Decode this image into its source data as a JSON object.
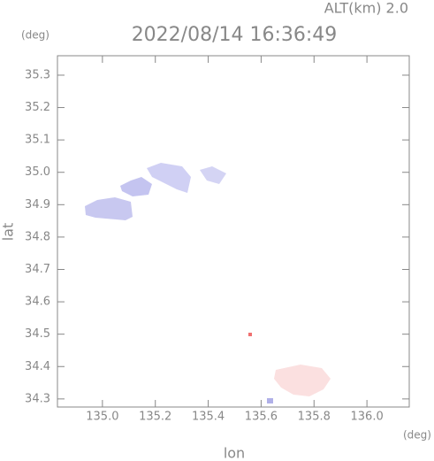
{
  "chart_data": {
    "type": "map",
    "title": "2022/08/14 16:36:49",
    "subtitle": "ALT(km) 2.0",
    "x_label": "lon",
    "y_label": "lat",
    "x_unit": "(deg)",
    "y_unit": "(deg)",
    "xlim": [
      134.83,
      136.16
    ],
    "ylim": [
      34.275,
      35.36
    ],
    "xticks": [
      {
        "value": 135,
        "label": "135.0"
      },
      135.2,
      135.4,
      135.6,
      135.8,
      {
        "value": 136,
        "label": "136.0"
      }
    ],
    "yticks": [
      34.3,
      34.4,
      34.5,
      34.6,
      34.7,
      34.8,
      34.9,
      {
        "value": 35,
        "label": "35.0"
      },
      35.1,
      35.2,
      35.3
    ],
    "axis_color": "#888888"
  }
}
